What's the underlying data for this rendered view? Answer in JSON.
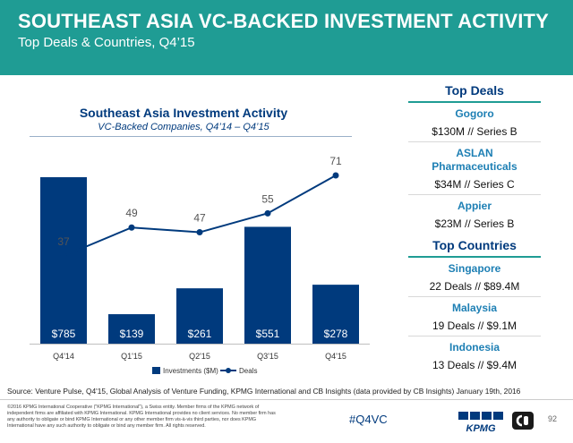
{
  "header": {
    "title": "SOUTHEAST ASIA VC-BACKED INVESTMENT ACTIVITY",
    "subtitle": "Top Deals & Countries, Q4’15"
  },
  "chart_data": {
    "type": "bar",
    "title": "Southeast Asia Investment Activity",
    "subtitle": "VC-Backed Companies, Q4’14 – Q4’15",
    "categories": [
      "Q4'14",
      "Q1'15",
      "Q2'15",
      "Q3'15",
      "Q4'15"
    ],
    "series": [
      {
        "name": "Investments ($M)",
        "kind": "bar",
        "values": [
          785,
          139,
          261,
          551,
          278
        ],
        "labels": [
          "$785",
          "$139",
          "$261",
          "$551",
          "$278"
        ],
        "color": "#003a7d"
      },
      {
        "name": "Deals",
        "kind": "line",
        "values": [
          37,
          49,
          47,
          55,
          71
        ],
        "labels": [
          "37",
          "49",
          "47",
          "55",
          "71"
        ],
        "color": "#003a7d"
      }
    ],
    "legend_position": "bottom",
    "grid": false
  },
  "sidebar": {
    "deals_heading": "Top Deals",
    "deals": [
      {
        "name": "Gogoro",
        "detail": "$130M // Series B"
      },
      {
        "name": "ASLAN Pharmaceuticals",
        "detail": "$34M // Series C"
      },
      {
        "name": "Appier",
        "detail": "$23M // Series B"
      }
    ],
    "countries_heading": "Top Countries",
    "countries": [
      {
        "name": "Singapore",
        "detail": "22 Deals // $89.4M"
      },
      {
        "name": "Malaysia",
        "detail": "19 Deals // $9.1M"
      },
      {
        "name": "Indonesia",
        "detail": "13 Deals // $9.4M"
      }
    ]
  },
  "footer": {
    "source": "Source: Venture Pulse, Q4'15, Global Analysis of Venture Funding, KPMG International and CB Insights (data provided by CB Insights) January 19th, 2016",
    "copyright": "©2016 KPMG International Cooperative (\"KPMG International\"), a Swiss entity. Member firms of the KPMG network of independent firms are affiliated with KPMG International. KPMG International provides no client services. No member firm has any authority to obligate or bind KPMG International or any other member firm vis-à-vis third parties, nor does KPMG International have any such authority to obligate or bind any member firm. All rights reserved.",
    "hashtag": "#Q4VC",
    "kpmg_logo_text": "KPMG",
    "page_number": "92"
  },
  "colors": {
    "header_bg": "#1f9c94",
    "navy": "#003a7d",
    "accent_blue": "#1d7fb4"
  }
}
